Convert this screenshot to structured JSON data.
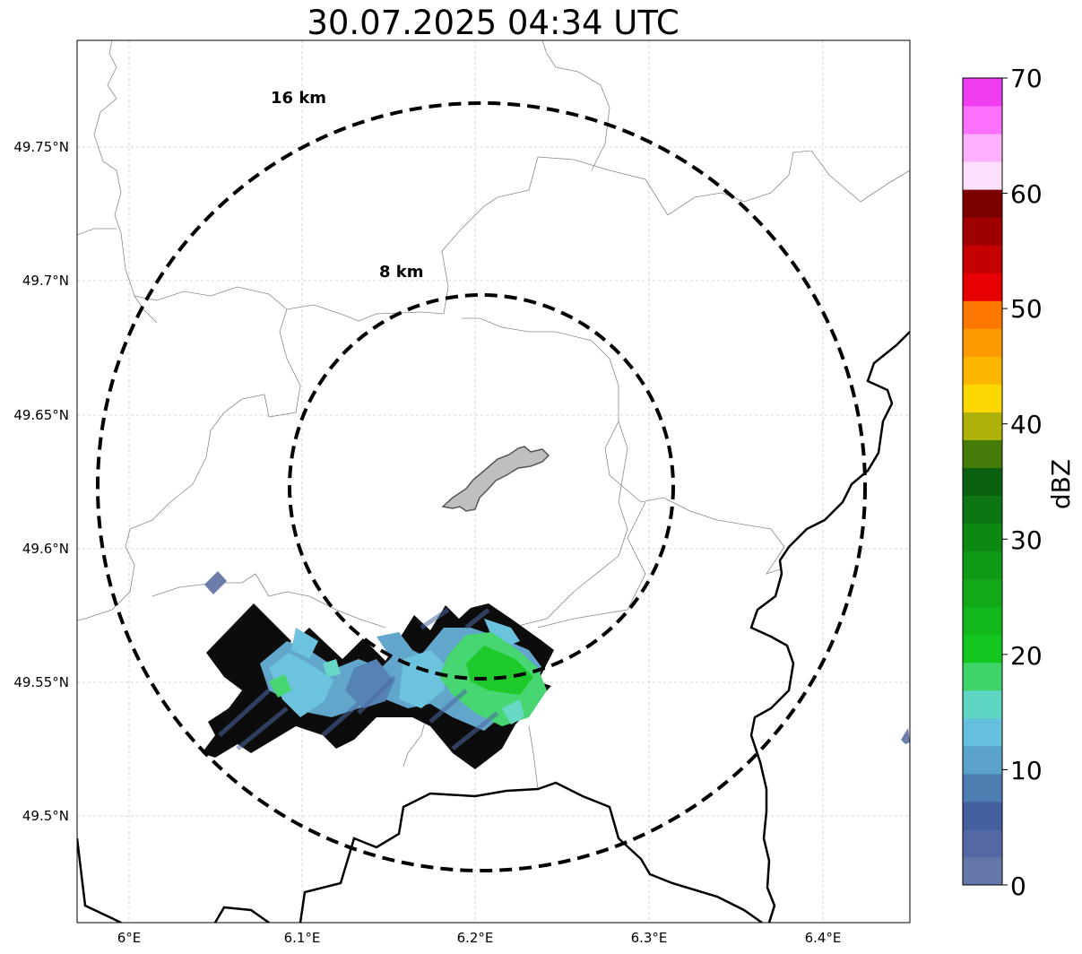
{
  "title": "30.07.2025 04:34 UTC",
  "axes": {
    "x_ticks": [
      "6°E",
      "6.1°E",
      "6.2°E",
      "6.3°E",
      "6.4°E"
    ],
    "y_ticks": [
      "49.75°N",
      "49.7°N",
      "49.65°N",
      "49.6°N",
      "49.55°N",
      "49.5°N"
    ],
    "grid": true
  },
  "range_rings": [
    {
      "label": "16 km"
    },
    {
      "label": "8 km"
    }
  ],
  "colorbar": {
    "label": "dBZ",
    "ticks": [
      "0",
      "10",
      "20",
      "30",
      "40",
      "50",
      "60",
      "70"
    ],
    "min": 0,
    "max": 70,
    "step": 2.5,
    "colors": [
      "#6577a8",
      "#5469a3",
      "#44609f",
      "#4e7db2",
      "#5aa2c9",
      "#64c0dc",
      "#5fd6c4",
      "#3ed46a",
      "#12c820",
      "#13b81c",
      "#12a818",
      "#0f9a15",
      "#0d8813",
      "#0c7612",
      "#0a600e",
      "#477c0b",
      "#aeb10a",
      "#fdd701",
      "#fdb600",
      "#fd9b00",
      "#fd7800",
      "#e60003",
      "#c40002",
      "#9f0000",
      "#7b0000",
      "#fde0fd",
      "#fdb0fd",
      "#fd6ffd",
      "#f03cf0"
    ],
    "colors_note": "reflectivity color scale"
  },
  "colors": {
    "country_border": "#000000",
    "admin_border": "#888888",
    "city_fill": "#bfbfbf",
    "rain_light": "#6577a8",
    "rain_moderate": "#64c0dc",
    "rain_heavy": "#12c820"
  }
}
